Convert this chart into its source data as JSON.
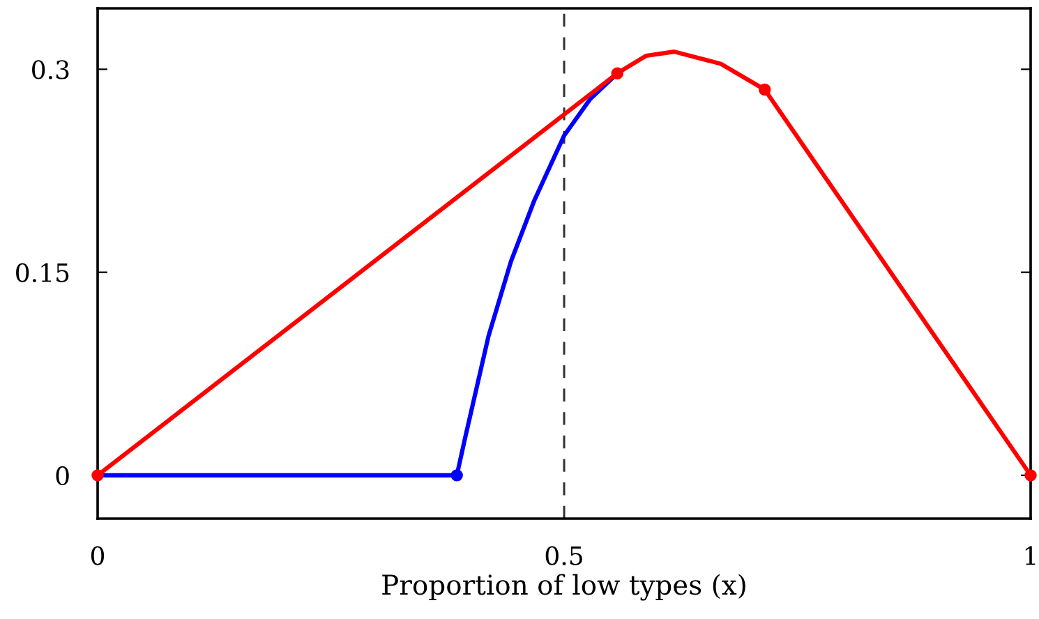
{
  "chart_data": {
    "type": "line",
    "xlabel": "Proportion of low types (x)",
    "xlim": [
      0,
      1
    ],
    "ylim": [
      -0.032,
      0.345
    ],
    "xticks": [
      0,
      0.5,
      1
    ],
    "yticks": [
      0,
      0.15,
      0.3
    ],
    "grid": false,
    "ref_lines": [
      {
        "axis": "x",
        "value": 0.5,
        "color": "#333333",
        "line_style": "dashed"
      }
    ],
    "series": [
      {
        "color": "#0000ff",
        "x": [
          0,
          0.385,
          0.394,
          0.419,
          0.443,
          0.468,
          0.5,
          0.528,
          0.557
        ],
        "values": [
          0,
          0,
          0.028,
          0.103,
          0.158,
          0.203,
          0.251,
          0.278,
          0.297
        ]
      },
      {
        "color": "#ff0000",
        "x": [
          0,
          0.557,
          0.588,
          0.618,
          0.668,
          0.715,
          1
        ],
        "values": [
          0,
          0.297,
          0.31,
          0.313,
          0.304,
          0.285,
          0
        ]
      },
      {
        "type": "scatter",
        "color": "#0000ff",
        "x": [
          0.385
        ],
        "values": [
          0
        ]
      },
      {
        "type": "scatter",
        "color": "#ff0000",
        "x": [
          0,
          0.557,
          0.715,
          1
        ],
        "values": [
          0,
          0.297,
          0.285,
          0
        ]
      }
    ]
  }
}
